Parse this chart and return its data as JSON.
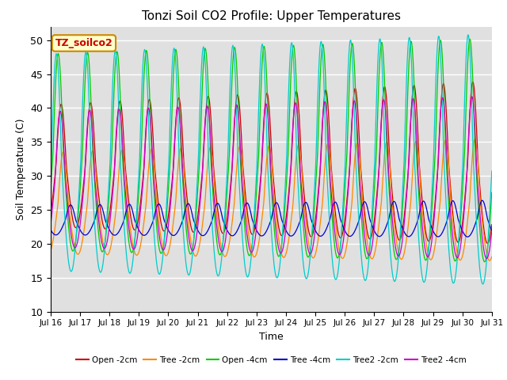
{
  "title": "Tonzi Soil CO2 Profile: Upper Temperatures",
  "xlabel": "Time",
  "ylabel": "Soil Temperature (C)",
  "ylim": [
    10,
    52
  ],
  "yticks": [
    10,
    15,
    20,
    25,
    30,
    35,
    40,
    45,
    50
  ],
  "xtick_labels": [
    "Jul 16",
    "Jul 17",
    "Jul 18",
    "Jul 19",
    "Jul 20",
    "Jul 21",
    "Jul 22",
    "Jul 23",
    "Jul 24",
    "Jul 25",
    "Jul 26",
    "Jul 27",
    "Jul 28",
    "Jul 29",
    "Jul 30",
    "Jul 31"
  ],
  "annotation_text": "TZ_soilco2",
  "annotation_bg": "#ffffcc",
  "annotation_border": "#cc8800",
  "bg_color": "#e0e0e0",
  "series": [
    {
      "label": "Open -2cm",
      "color": "#cc0000",
      "amp": 9.0,
      "mean": 31.5,
      "phase_shift": 0.18,
      "min_val": 22.0,
      "max_grow": 3.0,
      "min_grow": 0.5
    },
    {
      "label": "Tree -2cm",
      "color": "#ff8800",
      "amp": 7.5,
      "mean": 26.0,
      "phase_shift": 0.25,
      "min_val": 18.5,
      "max_grow": 1.5,
      "min_grow": 0.5
    },
    {
      "label": "Open -4cm",
      "color": "#00cc00",
      "amp": 14.5,
      "mean": 33.5,
      "phase_shift": 0.08,
      "min_val": 19.0,
      "max_grow": 2.0,
      "min_grow": 0.3
    },
    {
      "label": "Tree -4cm",
      "color": "#0000cc",
      "amp": 2.2,
      "mean": 23.5,
      "phase_shift": 0.5,
      "min_val": 21.5,
      "max_grow": 0.5,
      "min_grow": 0.2
    },
    {
      "label": "Tree2 -2cm",
      "color": "#00cccc",
      "amp": 16.0,
      "mean": 32.0,
      "phase_shift": 0.02,
      "min_val": 16.0,
      "max_grow": 2.5,
      "min_grow": 0.5
    },
    {
      "label": "Tree2 -4cm",
      "color": "#cc00cc",
      "amp": 10.0,
      "mean": 29.5,
      "phase_shift": 0.15,
      "min_val": 19.5,
      "max_grow": 2.0,
      "min_grow": 0.3
    }
  ],
  "n_points": 720,
  "days": 15,
  "start_day": 16,
  "skew": 0.35
}
